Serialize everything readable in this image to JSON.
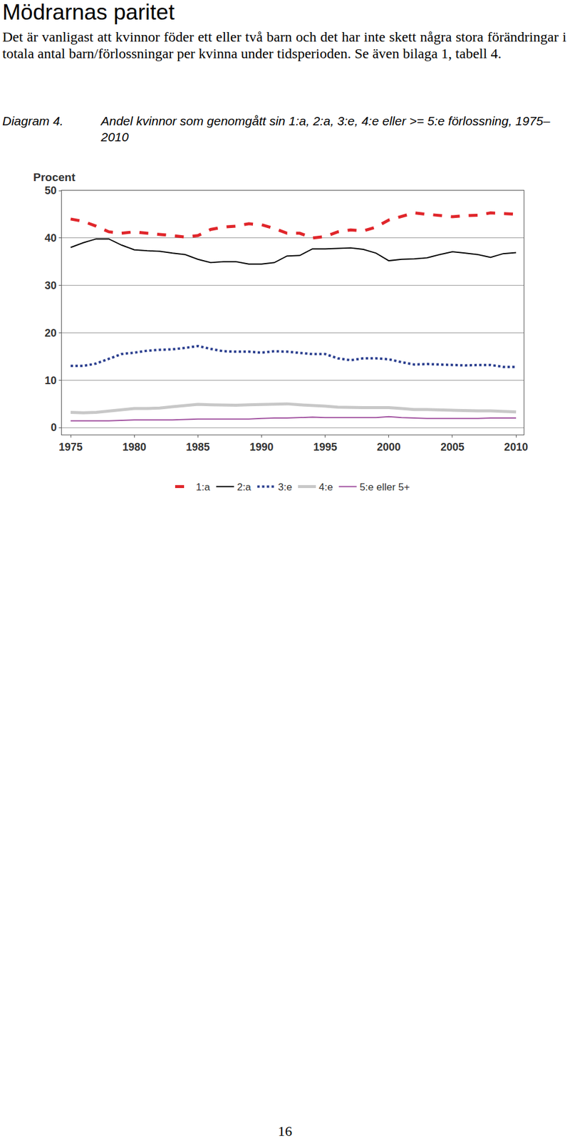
{
  "heading": "Mödrarnas paritet",
  "paragraph": "Det är vanligast att kvinnor föder ett eller två barn och det har inte skett några stora förändringar i totala antal barn/förlossningar per kvinna under tidsperioden. Se även bilaga 1, tabell 4.",
  "caption": {
    "label": "Diagram 4.",
    "text": "Andel kvinnor som genomgått sin 1:a, 2:a, 3:e, 4:e eller >= 5:e förlossning, 1975–2010"
  },
  "page_number": "16",
  "chart_data": {
    "type": "line",
    "y_label": "Procent",
    "x": [
      1975,
      1976,
      1977,
      1978,
      1979,
      1980,
      1981,
      1982,
      1983,
      1984,
      1985,
      1986,
      1987,
      1988,
      1989,
      1990,
      1991,
      1992,
      1993,
      1994,
      1995,
      1996,
      1997,
      1998,
      1999,
      2000,
      2001,
      2002,
      2003,
      2004,
      2005,
      2006,
      2007,
      2008,
      2009,
      2010
    ],
    "series": [
      {
        "name": "1:a",
        "color": "#e0262b",
        "line_style": "dashed",
        "values": [
          44,
          43.5,
          42.5,
          41.3,
          41,
          41.3,
          41,
          40.8,
          40.5,
          40.2,
          40.5,
          41.8,
          42.3,
          42.5,
          43,
          42.8,
          42,
          41,
          41,
          40,
          40.3,
          41.3,
          41.7,
          41.5,
          42.3,
          43.8,
          44.5,
          45.3,
          45,
          44.8,
          44.5,
          44.7,
          44.8,
          45.3,
          45.2,
          45
        ]
      },
      {
        "name": "2:a",
        "color": "#000000",
        "line_style": "solid",
        "values": [
          38,
          39,
          39.8,
          39.8,
          38.5,
          37.5,
          37.3,
          37.2,
          36.8,
          36.5,
          35.5,
          34.8,
          35,
          35,
          34.5,
          34.5,
          34.8,
          36.2,
          36.3,
          37.7,
          37.7,
          37.8,
          37.9,
          37.6,
          36.8,
          35.2,
          35.5,
          35.6,
          35.8,
          36.5,
          37.1,
          36.8,
          36.5,
          35.9,
          36.7,
          36.9
        ]
      },
      {
        "name": "3:e",
        "color": "#2b3f8f",
        "line_style": "dotted",
        "values": [
          13,
          13,
          13.5,
          14.5,
          15.5,
          15.8,
          16.2,
          16.4,
          16.5,
          16.8,
          17.2,
          16.6,
          16.1,
          16,
          16,
          15.8,
          16.1,
          16,
          15.7,
          15.5,
          15.5,
          14.6,
          14.2,
          14.6,
          14.6,
          14.4,
          13.8,
          13.3,
          13.4,
          13.3,
          13.1,
          13.1,
          13.2,
          13.2,
          12.8,
          12.8
        ]
      },
      {
        "name": "4:e",
        "color": "#c8c8c8",
        "line_style": "solid",
        "values": [
          3.2,
          3.1,
          3.2,
          3.5,
          3.8,
          4,
          4,
          4.1,
          4.4,
          4.6,
          4.9,
          4.8,
          4.7,
          4.7,
          4.8,
          4.9,
          4.9,
          5,
          4.8,
          4.7,
          4.5,
          4.3,
          4.2,
          4.2,
          4.2,
          4.2,
          4,
          3.8,
          3.8,
          3.7,
          3.6,
          3.6,
          3.5,
          3.5,
          3.4,
          3.3
        ]
      },
      {
        "name": "5:e eller 5+",
        "color": "#a0509f",
        "line_style": "solid",
        "values": [
          1.4,
          1.4,
          1.4,
          1.4,
          1.5,
          1.6,
          1.6,
          1.6,
          1.6,
          1.7,
          1.8,
          1.8,
          1.8,
          1.8,
          1.8,
          1.9,
          2,
          2,
          2.1,
          2.2,
          2.1,
          2.1,
          2.1,
          2.1,
          2.1,
          2.3,
          2.1,
          2,
          1.9,
          1.9,
          1.9,
          1.9,
          1.9,
          2,
          2,
          2
        ]
      }
    ],
    "xlim": [
      1974.3,
      2010.6
    ],
    "xticks": [
      1975,
      1980,
      1985,
      1990,
      1995,
      2000,
      2005,
      2010
    ],
    "ylim": [
      -1.5,
      50
    ],
    "yticks": [
      0,
      10,
      20,
      30,
      40,
      50
    ],
    "grid": true,
    "legend": "bottom"
  }
}
